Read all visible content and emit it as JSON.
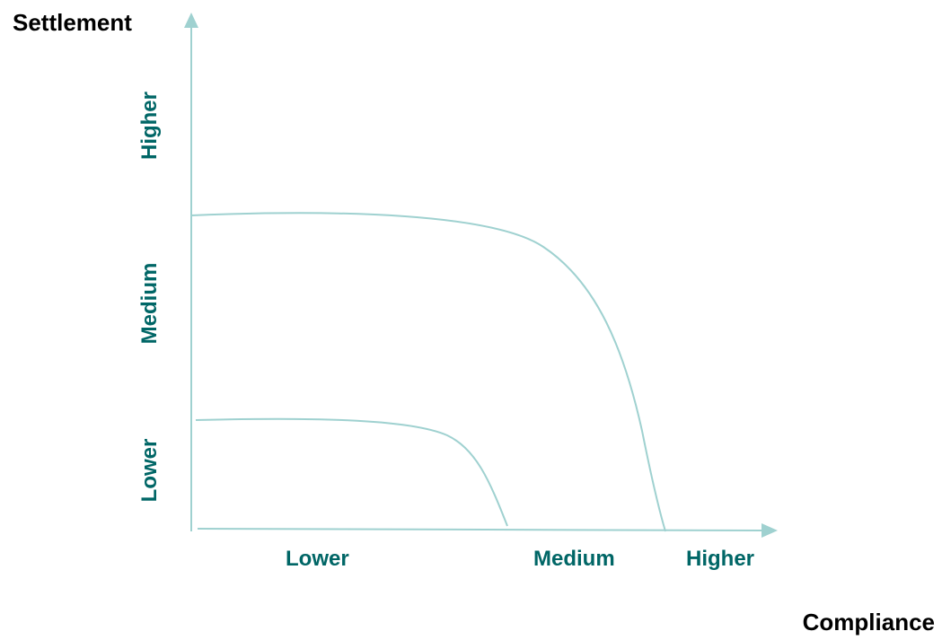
{
  "diagram": {
    "y_axis_title": "Settlement",
    "x_axis_title": "Compliance",
    "x_ticks": [
      "Lower",
      "Medium",
      "Higher"
    ],
    "y_ticks": [
      "Lower",
      "Medium",
      "Higher"
    ],
    "colors": {
      "axis": "#9fd1d0",
      "curve": "#9fd1d0",
      "tick_label": "#006666",
      "axis_title": "#000000"
    },
    "curves": [
      "lower-settlement-curve",
      "higher-settlement-curve"
    ]
  }
}
